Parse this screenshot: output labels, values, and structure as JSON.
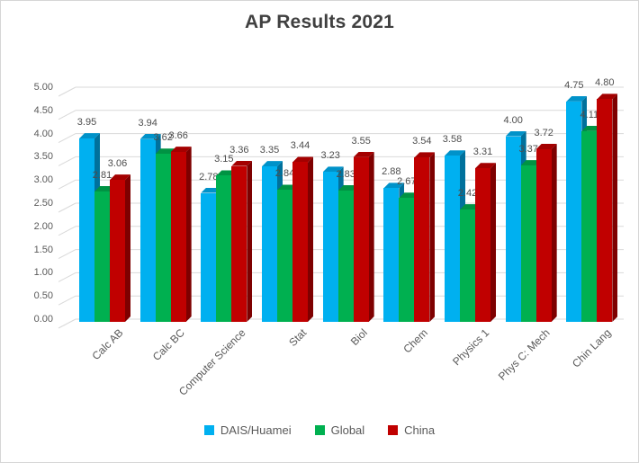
{
  "chart_data": {
    "type": "bar",
    "style": "3d-clustered-column",
    "title": "AP Results 2021",
    "categories": [
      "Calc AB",
      "Calc BC",
      "Computer Science",
      "Stat",
      "Biol",
      "Chem",
      "Physics 1",
      "Phys C: Mech",
      "Chin Lang"
    ],
    "series": [
      {
        "name": "DAIS/Huamei",
        "color": "#00B0F0",
        "color_top": "#0092C9",
        "color_side": "#00719C",
        "values": [
          3.95,
          3.94,
          2.78,
          3.35,
          3.23,
          2.88,
          3.58,
          4.0,
          4.75
        ]
      },
      {
        "name": "Global",
        "color": "#00B050",
        "color_top": "#009343",
        "color_side": "#007234",
        "values": [
          2.81,
          3.62,
          3.15,
          2.84,
          2.83,
          2.67,
          2.42,
          3.37,
          4.11
        ]
      },
      {
        "name": "China",
        "color": "#C00000",
        "color_top": "#A40000",
        "color_side": "#7E0000",
        "values": [
          3.06,
          3.66,
          3.36,
          3.44,
          3.55,
          3.54,
          3.31,
          3.72,
          4.8
        ]
      }
    ],
    "ylim": [
      0,
      5
    ],
    "ytick_step": 0.5,
    "ytick_labels": [
      "0.00",
      "0.50",
      "1.00",
      "1.50",
      "2.00",
      "2.50",
      "3.00",
      "3.50",
      "4.00",
      "4.50",
      "5.00"
    ],
    "value_label_decimals": 2,
    "grid": true,
    "gridline_color": "#D9D9D9",
    "axis_text_color": "#595959",
    "legend_position": "bottom"
  }
}
